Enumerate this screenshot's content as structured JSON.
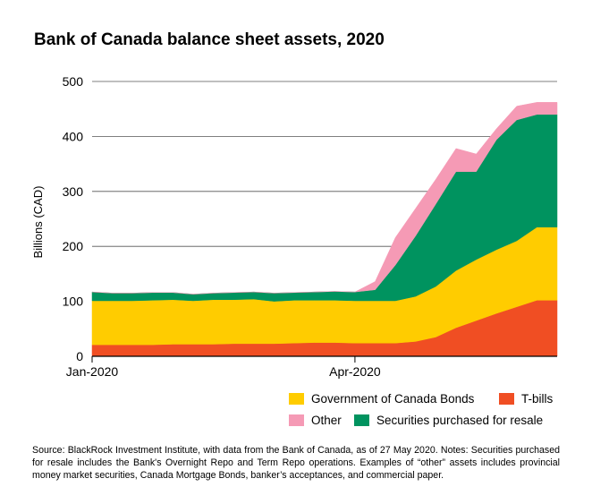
{
  "title": "Bank of Canada balance sheet assets, 2020",
  "source": "Source: BlackRock Investment Institute, with data from the Bank of Canada, as of 27 May 2020. Notes: Securities purchased for resale includes the Bank's Overnight Repo and Term Repo operations. Examples of “other” assets includes provincial money market securities, Canada Mortgage Bonds, banker’s acceptances, and commercial paper.",
  "legend": [
    {
      "name": "Government of Canada Bonds",
      "color": "#ffcc00"
    },
    {
      "name": "T-bills",
      "color": "#f04e23"
    },
    {
      "name": "Other",
      "color": "#f59ab5"
    },
    {
      "name": "Securities purchased for resale",
      "color": "#00935f"
    }
  ],
  "chart_data": {
    "type": "area",
    "stacked": true,
    "ylabel": "Billions (CAD)",
    "ylim": [
      0,
      500
    ],
    "yticks": [
      0,
      100,
      200,
      300,
      400,
      500
    ],
    "xticks": [
      {
        "label": "Jan-2020",
        "x": 0
      },
      {
        "label": "Apr-2020",
        "x": 13
      }
    ],
    "x": [
      0,
      1,
      2,
      3,
      4,
      5,
      6,
      7,
      8,
      9,
      10,
      11,
      12,
      13,
      14,
      15,
      16,
      17,
      18,
      19,
      20,
      21,
      22,
      23
    ],
    "grid": "horizontal",
    "series": [
      {
        "name": "T-bills",
        "color": "#f04e23",
        "values": [
          21,
          21,
          21,
          21,
          22,
          22,
          22,
          23,
          23,
          23,
          24,
          25,
          25,
          24,
          24,
          24,
          27,
          35,
          52,
          65,
          78,
          90,
          102,
          102
        ]
      },
      {
        "name": "Government of Canada Bonds",
        "color": "#ffcc00",
        "values": [
          80,
          80,
          80,
          81,
          81,
          79,
          81,
          80,
          81,
          77,
          78,
          77,
          77,
          77,
          77,
          77,
          82,
          92,
          104,
          111,
          116,
          120,
          133,
          133
        ]
      },
      {
        "name": "Securities purchased for resale",
        "color": "#00935f",
        "values": [
          16,
          14,
          14,
          14,
          13,
          12,
          12,
          13,
          13,
          15,
          14,
          15,
          16,
          16,
          20,
          65,
          110,
          150,
          180,
          160,
          200,
          220,
          205,
          205
        ]
      },
      {
        "name": "Other",
        "color": "#f59ab5",
        "values": [
          0,
          0,
          0,
          0,
          0,
          0,
          0,
          0,
          0,
          0,
          0,
          0,
          0,
          0,
          15,
          50,
          50,
          45,
          42,
          32,
          20,
          25,
          22,
          22
        ]
      }
    ]
  }
}
